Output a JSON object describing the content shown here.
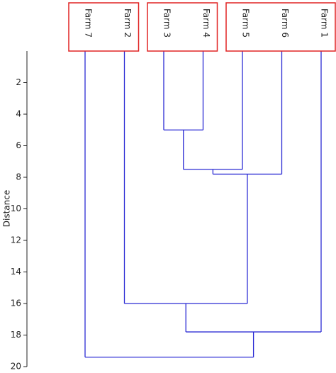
{
  "chart_data": {
    "type": "dendrogram",
    "y_label": "Distance",
    "leaves": [
      "Farm 7",
      "Farm 2",
      "Farm 3",
      "Farm 4",
      "Farm 5",
      "Farm 6",
      "Farm 1"
    ],
    "merges": [
      {
        "left": 2,
        "right": 3,
        "height": 5.0
      },
      {
        "left": 7,
        "right": 4,
        "height": 7.5
      },
      {
        "left": 8,
        "right": 5,
        "height": 7.8
      },
      {
        "left": 1,
        "right": 9,
        "height": 16.0
      },
      {
        "left": 10,
        "right": 6,
        "height": 17.8
      },
      {
        "left": 0,
        "right": 11,
        "height": 19.4
      }
    ],
    "groups": [
      [
        0,
        1
      ],
      [
        2,
        3
      ],
      [
        4,
        5,
        6
      ]
    ],
    "ylim": [
      0,
      20
    ],
    "yticks": [
      2,
      4,
      6,
      8,
      10,
      12,
      14,
      16,
      18,
      20
    ],
    "color": "#2b2bd4",
    "group_color": "#e02424"
  }
}
